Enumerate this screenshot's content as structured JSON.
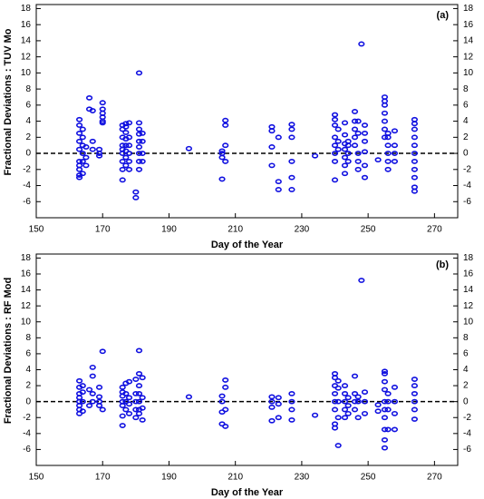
{
  "chart_data": [
    {
      "type": "scatter",
      "annotation": "(a)",
      "xlabel": "Day of the Year",
      "ylabel": "Fractional Deviations : TUV Mo",
      "color": "#1010e0",
      "hline": 0,
      "xlim": [
        150,
        277
      ],
      "ylim": [
        -8,
        18.5
      ],
      "xticks": [
        150,
        170,
        190,
        210,
        230,
        250,
        270
      ],
      "yticks": [
        -6,
        -4,
        -2,
        0,
        2,
        4,
        6,
        8,
        10,
        12,
        14,
        16,
        18
      ],
      "x": [
        163,
        163,
        163,
        163,
        163,
        163,
        163,
        163,
        163,
        163,
        164,
        164,
        164,
        164,
        164,
        164,
        165,
        165,
        165,
        166,
        166,
        167,
        167,
        167,
        169,
        169,
        169,
        170,
        170,
        170,
        170,
        170,
        170,
        176,
        176,
        176,
        176,
        176,
        176,
        176,
        176,
        176,
        177,
        177,
        177,
        177,
        177,
        177,
        177,
        177,
        178,
        178,
        178,
        178,
        178,
        178,
        180,
        180,
        181,
        181,
        181,
        181,
        181,
        181,
        181,
        181,
        181,
        182,
        182,
        182,
        182,
        196,
        206,
        206,
        206,
        206,
        207,
        207,
        207,
        207,
        221,
        221,
        221,
        221,
        223,
        223,
        223,
        227,
        227,
        227,
        227,
        227,
        227,
        234,
        240,
        240,
        240,
        240,
        240,
        240,
        240,
        240,
        241,
        241,
        241,
        243,
        243,
        243,
        243,
        243,
        243,
        243,
        244,
        244,
        244,
        244,
        246,
        246,
        246,
        246,
        246,
        247,
        247,
        247,
        247,
        247,
        248,
        249,
        249,
        249,
        249,
        249,
        249,
        253,
        255,
        255,
        255,
        255,
        255,
        255,
        255,
        256,
        256,
        256,
        256,
        256,
        256,
        258,
        258,
        258,
        258,
        264,
        264,
        264,
        264,
        264,
        264,
        264,
        264,
        264,
        264,
        264
      ],
      "values": [
        -3,
        -2.7,
        -2,
        -1.5,
        -1,
        0.5,
        1.5,
        2.5,
        3.5,
        4.2,
        -2.5,
        -1,
        0,
        1,
        2,
        3,
        -1.5,
        -0.5,
        0.8,
        5.5,
        6.9,
        5.3,
        1.5,
        0.5,
        0,
        -0.3,
        0.5,
        4,
        4.5,
        5,
        5.5,
        6.3,
        3.8,
        -3.3,
        -2,
        -1,
        0,
        0.5,
        1,
        2,
        3,
        3.5,
        -1.5,
        -0.5,
        0.3,
        1,
        1.8,
        2.6,
        3.3,
        3.7,
        -2,
        -1,
        0,
        1,
        2,
        3.8,
        -5.5,
        -4.8,
        10,
        -2,
        -1,
        0,
        0.8,
        1.5,
        2.4,
        3,
        3.8,
        -1,
        0,
        1.5,
        2.5,
        0.6,
        -3.2,
        -0.5,
        0,
        0.3,
        3.5,
        4.1,
        1,
        -1,
        -1.5,
        0.8,
        2.8,
        3.3,
        -4.5,
        -3.5,
        2,
        -4.5,
        -3,
        -1,
        2,
        3,
        3.6,
        -0.3,
        -3.3,
        -1,
        0,
        1,
        2,
        3.5,
        4.2,
        4.8,
        0.5,
        1.5,
        3,
        -2.5,
        -1.5,
        -0.5,
        0.5,
        1.2,
        2.3,
        3.8,
        -1,
        0,
        1,
        1.5,
        1,
        2,
        3,
        4,
        5.2,
        0,
        -1,
        -2,
        2.5,
        4,
        13.6,
        -3,
        -1.5,
        0.2,
        1.5,
        2.5,
        3.5,
        -0.8,
        2,
        3,
        4,
        5,
        6,
        6.5,
        7,
        -2,
        -1,
        0,
        1,
        2,
        2.5,
        -1,
        0,
        1,
        2.8,
        -4.7,
        -4.2,
        -3,
        -2,
        -1,
        0,
        1,
        2,
        3,
        3.7,
        4.2
      ]
    },
    {
      "type": "scatter",
      "annotation": "(b)",
      "xlabel": "Day of the Year",
      "ylabel": "Fractional Deviations : RF Mod",
      "color": "#1010e0",
      "hline": 0,
      "xlim": [
        150,
        277
      ],
      "ylim": [
        -8,
        18.5
      ],
      "xticks": [
        150,
        170,
        190,
        210,
        230,
        250,
        270
      ],
      "yticks": [
        -6,
        -4,
        -2,
        0,
        2,
        4,
        6,
        8,
        10,
        12,
        14,
        16,
        18
      ],
      "x": [
        163,
        163,
        163,
        163,
        163,
        163,
        163,
        163,
        164,
        164,
        164,
        164,
        166,
        166,
        167,
        167,
        167,
        167,
        169,
        169,
        169,
        169,
        170,
        170,
        176,
        176,
        176,
        176,
        176,
        176,
        176,
        177,
        177,
        177,
        177,
        178,
        178,
        178,
        178,
        180,
        180,
        180,
        180,
        180,
        181,
        181,
        181,
        181,
        181,
        181,
        181,
        182,
        182,
        182,
        182,
        196,
        206,
        206,
        206,
        206,
        207,
        207,
        207,
        207,
        221,
        221,
        221,
        221,
        223,
        223,
        223,
        227,
        227,
        227,
        227,
        234,
        240,
        240,
        240,
        240,
        240,
        240,
        240,
        240,
        241,
        241,
        241,
        241,
        241,
        243,
        243,
        243,
        243,
        243,
        244,
        244,
        244,
        246,
        246,
        246,
        246,
        247,
        247,
        247,
        248,
        249,
        249,
        249,
        253,
        253,
        255,
        255,
        255,
        255,
        255,
        255,
        255,
        255,
        255,
        255,
        256,
        256,
        256,
        256,
        258,
        258,
        258,
        258,
        264,
        264,
        264,
        264,
        264,
        264
      ],
      "values": [
        -1.5,
        -1,
        -0.5,
        0,
        0.5,
        1,
        1.8,
        2.6,
        -1.2,
        0,
        1.2,
        2,
        -0.5,
        1.5,
        4.3,
        3.2,
        1,
        0,
        0,
        -0.5,
        0.6,
        1.8,
        6.3,
        -1,
        -3,
        -1.8,
        -0.5,
        0,
        0.7,
        1.2,
        1.8,
        -1,
        0,
        1,
        2.3,
        -1.5,
        -0.3,
        0.5,
        2.5,
        -2,
        -1,
        0,
        1,
        2.8,
        6.4,
        3.5,
        2,
        1,
        0,
        -1,
        -1.5,
        -2.3,
        -0.8,
        0.5,
        3,
        0.6,
        -2.8,
        -1.3,
        0,
        0.7,
        -3.1,
        -1,
        1.8,
        2.7,
        -2.4,
        -0.7,
        0,
        0.6,
        -2,
        -0.3,
        0.5,
        -2.3,
        -1,
        0,
        1,
        -1.7,
        -3.3,
        -2.8,
        -1,
        0,
        1,
        2,
        3,
        3.5,
        -5.5,
        -2,
        0,
        1.7,
        2.6,
        -2,
        -1,
        0,
        1,
        2,
        -1.5,
        -0.5,
        0.5,
        -1,
        0,
        1,
        3.2,
        -2,
        0,
        0.6,
        15.2,
        -1.5,
        0,
        1.2,
        -1.2,
        -0.4,
        -5.8,
        -4.8,
        -3.5,
        -2,
        -1,
        0,
        1.5,
        2.5,
        3.5,
        3.8,
        -3.5,
        -1,
        0,
        1,
        -3.5,
        -1.5,
        0,
        1.8,
        -2.2,
        -1,
        0,
        1,
        2,
        2.8
      ]
    }
  ]
}
